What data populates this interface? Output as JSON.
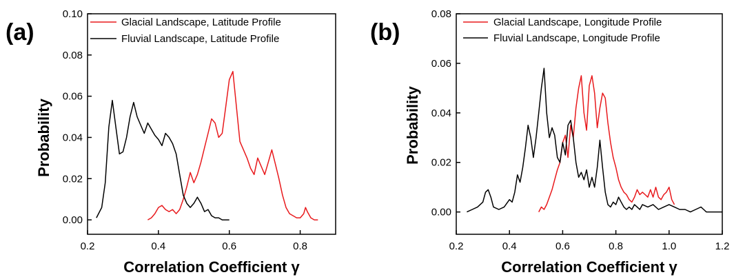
{
  "colors": {
    "glacial": "#e8191c",
    "fluvial": "#000000",
    "axis": "#000000"
  },
  "chart_data": [
    {
      "panel_label": "(a)",
      "type": "line",
      "xlabel": "Correlation Coefficient γ",
      "ylabel": "Probability",
      "xlim": [
        0.2,
        0.9
      ],
      "ylim": [
        -0.007,
        0.1
      ],
      "xticks": [
        0.2,
        0.4,
        0.6,
        0.8
      ],
      "xtick_labels": [
        "0.2",
        "0.4",
        "0.6",
        "0.8"
      ],
      "yticks": [
        0.0,
        0.02,
        0.04,
        0.06,
        0.08,
        0.1
      ],
      "ytick_labels": [
        "0.00",
        "0.02",
        "0.04",
        "0.06",
        "0.08",
        "0.10"
      ],
      "grid": false,
      "legend": "top-center",
      "series": [
        {
          "name": "Glacial Landscape, Latitude Profile",
          "color": "#e8191c",
          "x": [
            0.37,
            0.38,
            0.39,
            0.4,
            0.41,
            0.42,
            0.43,
            0.44,
            0.45,
            0.46,
            0.47,
            0.48,
            0.49,
            0.5,
            0.51,
            0.52,
            0.53,
            0.54,
            0.55,
            0.56,
            0.57,
            0.58,
            0.59,
            0.6,
            0.61,
            0.62,
            0.63,
            0.64,
            0.65,
            0.66,
            0.67,
            0.68,
            0.69,
            0.7,
            0.71,
            0.72,
            0.73,
            0.74,
            0.75,
            0.76,
            0.77,
            0.78,
            0.79,
            0.8,
            0.81,
            0.815,
            0.82,
            0.83,
            0.84,
            0.85
          ],
          "y": [
            0.0,
            0.001,
            0.003,
            0.006,
            0.007,
            0.005,
            0.004,
            0.005,
            0.003,
            0.005,
            0.01,
            0.016,
            0.023,
            0.018,
            0.022,
            0.028,
            0.035,
            0.042,
            0.049,
            0.047,
            0.04,
            0.042,
            0.055,
            0.068,
            0.072,
            0.055,
            0.038,
            0.034,
            0.03,
            0.025,
            0.022,
            0.03,
            0.026,
            0.022,
            0.028,
            0.034,
            0.027,
            0.02,
            0.012,
            0.006,
            0.003,
            0.002,
            0.001,
            0.001,
            0.003,
            0.006,
            0.004,
            0.001,
            0.0,
            0.0
          ]
        },
        {
          "name": "Fluvial Landscape, Latitude Profile",
          "color": "#000000",
          "x": [
            0.225,
            0.24,
            0.25,
            0.26,
            0.27,
            0.28,
            0.29,
            0.3,
            0.31,
            0.32,
            0.33,
            0.34,
            0.35,
            0.36,
            0.37,
            0.38,
            0.39,
            0.4,
            0.41,
            0.42,
            0.43,
            0.44,
            0.45,
            0.46,
            0.47,
            0.48,
            0.49,
            0.5,
            0.51,
            0.52,
            0.53,
            0.54,
            0.55,
            0.56,
            0.57,
            0.58,
            0.6
          ],
          "y": [
            0.001,
            0.006,
            0.018,
            0.045,
            0.058,
            0.045,
            0.032,
            0.033,
            0.04,
            0.05,
            0.057,
            0.05,
            0.046,
            0.042,
            0.047,
            0.044,
            0.041,
            0.039,
            0.036,
            0.042,
            0.04,
            0.037,
            0.032,
            0.022,
            0.012,
            0.008,
            0.006,
            0.008,
            0.011,
            0.008,
            0.004,
            0.005,
            0.002,
            0.001,
            0.001,
            0.0,
            0.0
          ]
        }
      ]
    },
    {
      "panel_label": "(b)",
      "type": "line",
      "xlabel": "Correlation Coefficient γ",
      "ylabel": "Probability",
      "xlim": [
        0.2,
        1.2
      ],
      "ylim": [
        -0.009,
        0.08
      ],
      "xticks": [
        0.2,
        0.4,
        0.6,
        0.8,
        1.0,
        1.2
      ],
      "xtick_labels": [
        "0.2",
        "0.4",
        "0.6",
        "0.8",
        "1.0",
        "1.2"
      ],
      "yticks": [
        0.0,
        0.02,
        0.04,
        0.06,
        0.08
      ],
      "ytick_labels": [
        "0.00",
        "0.02",
        "0.04",
        "0.06",
        "0.08"
      ],
      "grid": false,
      "legend": "top-right",
      "series": [
        {
          "name": "Glacial Landscape, Longitude Profile",
          "color": "#e8191c",
          "x": [
            0.51,
            0.52,
            0.53,
            0.54,
            0.55,
            0.56,
            0.57,
            0.58,
            0.59,
            0.6,
            0.61,
            0.62,
            0.63,
            0.64,
            0.65,
            0.66,
            0.67,
            0.68,
            0.69,
            0.7,
            0.71,
            0.72,
            0.73,
            0.74,
            0.75,
            0.76,
            0.77,
            0.78,
            0.79,
            0.8,
            0.81,
            0.82,
            0.83,
            0.84,
            0.85,
            0.86,
            0.87,
            0.88,
            0.89,
            0.9,
            0.91,
            0.92,
            0.93,
            0.94,
            0.95,
            0.96,
            0.97,
            0.98,
            0.99,
            1.0,
            1.01,
            1.02
          ],
          "y": [
            0.0,
            0.002,
            0.001,
            0.003,
            0.006,
            0.009,
            0.013,
            0.017,
            0.02,
            0.028,
            0.031,
            0.022,
            0.035,
            0.03,
            0.042,
            0.05,
            0.055,
            0.04,
            0.033,
            0.051,
            0.055,
            0.048,
            0.034,
            0.042,
            0.048,
            0.046,
            0.036,
            0.028,
            0.022,
            0.018,
            0.013,
            0.01,
            0.008,
            0.007,
            0.005,
            0.004,
            0.006,
            0.009,
            0.007,
            0.008,
            0.007,
            0.006,
            0.009,
            0.006,
            0.01,
            0.006,
            0.005,
            0.007,
            0.008,
            0.01,
            0.005,
            0.003
          ]
        },
        {
          "name": "Fluvial Landscape, Longitude Profile",
          "color": "#000000",
          "x": [
            0.24,
            0.26,
            0.28,
            0.3,
            0.31,
            0.32,
            0.33,
            0.34,
            0.36,
            0.38,
            0.4,
            0.41,
            0.42,
            0.43,
            0.44,
            0.45,
            0.46,
            0.47,
            0.48,
            0.49,
            0.5,
            0.51,
            0.52,
            0.53,
            0.54,
            0.55,
            0.56,
            0.57,
            0.58,
            0.59,
            0.6,
            0.61,
            0.62,
            0.63,
            0.64,
            0.65,
            0.66,
            0.67,
            0.68,
            0.69,
            0.7,
            0.71,
            0.72,
            0.73,
            0.74,
            0.75,
            0.76,
            0.77,
            0.78,
            0.79,
            0.8,
            0.81,
            0.82,
            0.83,
            0.84,
            0.85,
            0.86,
            0.87,
            0.88,
            0.89,
            0.9,
            0.92,
            0.94,
            0.96,
            0.98,
            1.0,
            1.02,
            1.04,
            1.06,
            1.08,
            1.1,
            1.12,
            1.13,
            1.14,
            1.16,
            1.18,
            1.2
          ],
          "y": [
            0.0,
            0.001,
            0.002,
            0.004,
            0.008,
            0.009,
            0.006,
            0.002,
            0.001,
            0.002,
            0.005,
            0.004,
            0.008,
            0.015,
            0.012,
            0.018,
            0.026,
            0.035,
            0.03,
            0.022,
            0.03,
            0.04,
            0.05,
            0.058,
            0.04,
            0.03,
            0.034,
            0.031,
            0.022,
            0.02,
            0.028,
            0.023,
            0.035,
            0.037,
            0.03,
            0.02,
            0.014,
            0.016,
            0.013,
            0.017,
            0.01,
            0.014,
            0.01,
            0.018,
            0.029,
            0.018,
            0.008,
            0.003,
            0.002,
            0.004,
            0.003,
            0.006,
            0.004,
            0.002,
            0.001,
            0.002,
            0.001,
            0.003,
            0.002,
            0.001,
            0.003,
            0.002,
            0.003,
            0.001,
            0.002,
            0.003,
            0.002,
            0.001,
            0.001,
            0.0,
            0.001,
            0.002,
            0.001,
            0.0,
            0.0,
            0.0,
            0.0
          ]
        }
      ]
    }
  ]
}
